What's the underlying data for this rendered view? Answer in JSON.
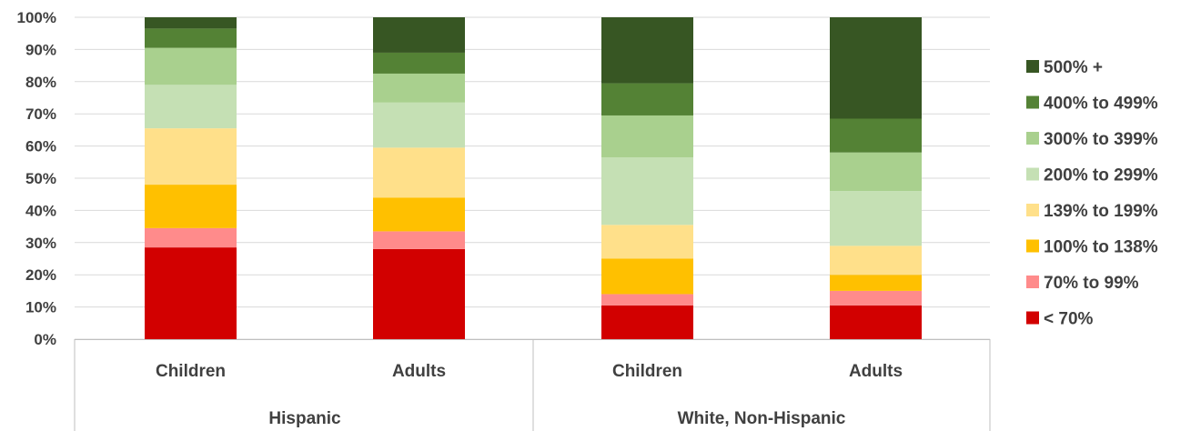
{
  "chart_data": {
    "type": "bar",
    "stacked": true,
    "percent_stacked": true,
    "title": "",
    "xlabel": "",
    "ylabel": "",
    "ylim": [
      0,
      100
    ],
    "yticks": [
      "0%",
      "10%",
      "20%",
      "30%",
      "40%",
      "50%",
      "60%",
      "70%",
      "80%",
      "90%",
      "100%"
    ],
    "grid": true,
    "legend_position": "right",
    "groups": [
      {
        "label": "Hispanic",
        "categories": [
          "Children",
          "Adults"
        ]
      },
      {
        "label": "White, Non-Hispanic",
        "categories": [
          "Children",
          "Adults"
        ]
      }
    ],
    "categories": [
      "Children",
      "Adults",
      "Children",
      "Adults"
    ],
    "series": [
      {
        "name": "< 70%",
        "color": "#d20000",
        "values": [
          28.5,
          28.0,
          10.5,
          10.5
        ]
      },
      {
        "name": "70% to 99%",
        "color": "#ff8b8b",
        "values": [
          6.0,
          5.5,
          3.5,
          4.5
        ]
      },
      {
        "name": "100% to 138%",
        "color": "#ffc000",
        "values": [
          13.5,
          10.5,
          11.0,
          5.0
        ]
      },
      {
        "name": "139% to 199%",
        "color": "#ffe08a",
        "values": [
          17.5,
          15.5,
          10.5,
          9.0
        ]
      },
      {
        "name": "200% to 299%",
        "color": "#c5e0b4",
        "values": [
          13.5,
          14.0,
          21.0,
          17.0
        ]
      },
      {
        "name": "300% to 399%",
        "color": "#a9d08e",
        "values": [
          11.5,
          9.0,
          13.0,
          12.0
        ]
      },
      {
        "name": "400% to 499%",
        "color": "#548235",
        "values": [
          6.0,
          6.5,
          10.0,
          10.5
        ]
      },
      {
        "name": "500% +",
        "color": "#375623",
        "values": [
          3.5,
          11.0,
          20.5,
          31.5
        ]
      }
    ]
  }
}
